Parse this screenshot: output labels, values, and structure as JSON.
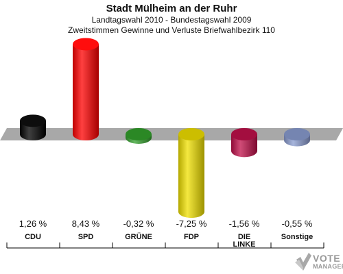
{
  "header": {
    "title": "Stadt Mülheim an der Ruhr",
    "subtitle1": "Landtagswahl 2010 - Bundestagswahl 2009",
    "subtitle2": "Zweitstimmen Gewinne und Verluste Briefwahlbezirk 110"
  },
  "chart_data": {
    "type": "bar",
    "title": "Stadt Mülheim an der Ruhr",
    "subtitle": "Zweitstimmen Gewinne und Verluste Briefwahlbezirk 110",
    "xlabel": "",
    "ylabel": "",
    "categories": [
      "CDU",
      "SPD",
      "GRÜNE",
      "FDP",
      "DIE LINKE",
      "Sonstige"
    ],
    "category_labels": [
      [
        "CDU"
      ],
      [
        "SPD"
      ],
      [
        "GRÜNE"
      ],
      [
        "FDP"
      ],
      [
        "DIE",
        "LINKE"
      ],
      [
        "Sonstige"
      ]
    ],
    "values": [
      1.26,
      8.43,
      -0.32,
      -7.25,
      -1.56,
      -0.55
    ],
    "value_labels": [
      "1,26 %",
      "8,43 %",
      "-0,32 %",
      "-7,25 %",
      "-1,56 %",
      "-0,55 %"
    ],
    "colors": [
      "#000000",
      "#ff0000",
      "#33a02c",
      "#f0e000",
      "#c0104a",
      "#8a9cd0"
    ],
    "ylim": [
      -8.5,
      9.5
    ],
    "grid": false,
    "legend": "none"
  },
  "branding": {
    "line1": "VOTE",
    "line2": "MANAGER"
  }
}
